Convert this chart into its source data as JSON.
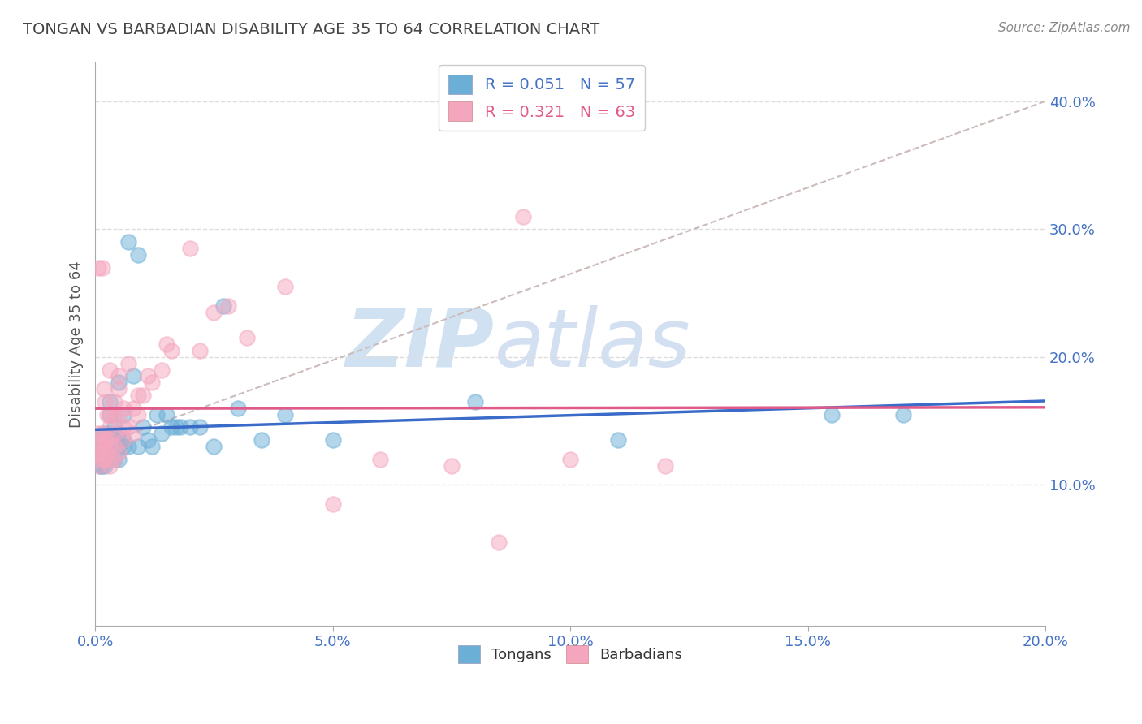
{
  "title": "TONGAN VS BARBADIAN DISABILITY AGE 35 TO 64 CORRELATION CHART",
  "source_text": "Source: ZipAtlas.com",
  "ylabel_label": "Disability Age 35 to 64",
  "legend_label1": "Tongans",
  "legend_label2": "Barbadians",
  "R1": 0.051,
  "N1": 57,
  "R2": 0.321,
  "N2": 63,
  "color_tongans": "#6baed6",
  "color_barbadians": "#f4a6be",
  "xlim": [
    0.0,
    0.2
  ],
  "ylim": [
    -0.01,
    0.43
  ],
  "x_ticks": [
    0.0,
    0.05,
    0.1,
    0.15,
    0.2
  ],
  "y_ticks": [
    0.1,
    0.2,
    0.3,
    0.4
  ],
  "tongans_x": [
    0.0003,
    0.0005,
    0.0008,
    0.001,
    0.001,
    0.0012,
    0.0013,
    0.0015,
    0.0016,
    0.0017,
    0.0018,
    0.002,
    0.002,
    0.0022,
    0.0023,
    0.0025,
    0.003,
    0.003,
    0.003,
    0.003,
    0.003,
    0.004,
    0.004,
    0.004,
    0.005,
    0.005,
    0.005,
    0.005,
    0.006,
    0.006,
    0.006,
    0.007,
    0.007,
    0.008,
    0.009,
    0.009,
    0.01,
    0.011,
    0.012,
    0.013,
    0.014,
    0.015,
    0.016,
    0.017,
    0.018,
    0.02,
    0.022,
    0.025,
    0.027,
    0.03,
    0.035,
    0.04,
    0.05,
    0.08,
    0.11,
    0.155,
    0.17
  ],
  "tongans_y": [
    0.125,
    0.13,
    0.135,
    0.115,
    0.125,
    0.13,
    0.115,
    0.12,
    0.12,
    0.13,
    0.14,
    0.115,
    0.125,
    0.12,
    0.13,
    0.135,
    0.12,
    0.13,
    0.14,
    0.155,
    0.165,
    0.12,
    0.135,
    0.145,
    0.12,
    0.13,
    0.14,
    0.18,
    0.13,
    0.135,
    0.155,
    0.13,
    0.29,
    0.185,
    0.13,
    0.28,
    0.145,
    0.135,
    0.13,
    0.155,
    0.14,
    0.155,
    0.145,
    0.145,
    0.145,
    0.145,
    0.145,
    0.13,
    0.24,
    0.16,
    0.135,
    0.155,
    0.135,
    0.165,
    0.135,
    0.155,
    0.155
  ],
  "barbadians_x": [
    0.0002,
    0.0003,
    0.0005,
    0.0007,
    0.001,
    0.001,
    0.0012,
    0.0013,
    0.0014,
    0.0015,
    0.0016,
    0.0017,
    0.0018,
    0.002,
    0.002,
    0.002,
    0.0022,
    0.0023,
    0.0025,
    0.003,
    0.003,
    0.003,
    0.003,
    0.003,
    0.003,
    0.003,
    0.004,
    0.004,
    0.004,
    0.004,
    0.004,
    0.005,
    0.005,
    0.005,
    0.005,
    0.006,
    0.006,
    0.006,
    0.007,
    0.007,
    0.008,
    0.008,
    0.009,
    0.009,
    0.01,
    0.011,
    0.012,
    0.014,
    0.015,
    0.016,
    0.02,
    0.022,
    0.025,
    0.028,
    0.032,
    0.04,
    0.05,
    0.06,
    0.075,
    0.085,
    0.09,
    0.1,
    0.12
  ],
  "barbadians_y": [
    0.12,
    0.125,
    0.14,
    0.27,
    0.115,
    0.125,
    0.13,
    0.135,
    0.14,
    0.27,
    0.12,
    0.13,
    0.175,
    0.12,
    0.135,
    0.165,
    0.125,
    0.135,
    0.155,
    0.115,
    0.12,
    0.13,
    0.135,
    0.145,
    0.155,
    0.19,
    0.12,
    0.13,
    0.14,
    0.155,
    0.165,
    0.125,
    0.155,
    0.175,
    0.185,
    0.135,
    0.145,
    0.16,
    0.145,
    0.195,
    0.14,
    0.16,
    0.155,
    0.17,
    0.17,
    0.185,
    0.18,
    0.19,
    0.21,
    0.205,
    0.285,
    0.205,
    0.235,
    0.24,
    0.215,
    0.255,
    0.085,
    0.12,
    0.115,
    0.055,
    0.31,
    0.12,
    0.115
  ],
  "watermark_zip": "ZIP",
  "watermark_atlas": "atlas",
  "background_color": "#ffffff",
  "grid_color": "#dddddd",
  "ref_line_color": "#ccbbbb"
}
